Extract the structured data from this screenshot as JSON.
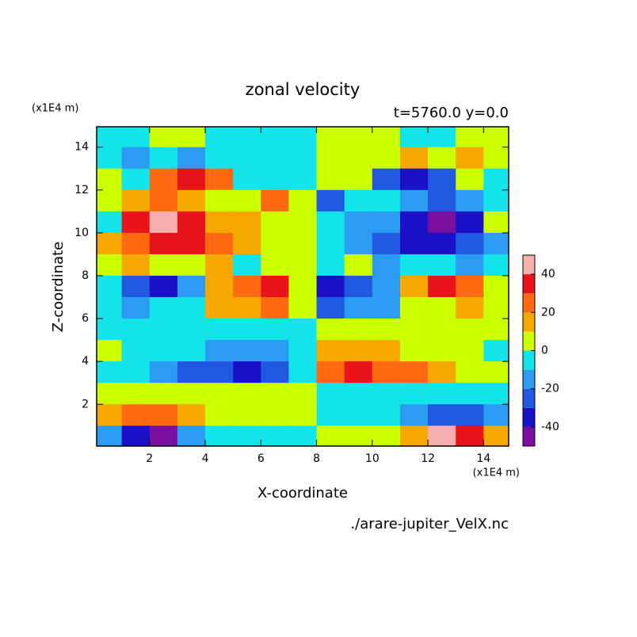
{
  "chart_data": {
    "type": "contour",
    "title": "zonal velocity",
    "subtitle": "t=5760.0 y=0.0",
    "x_label": "X-coordinate",
    "y_label": "Z-coordinate",
    "x_unit": "(x1E4 m)",
    "y_unit": "(x1E4 m)",
    "source": "./arare-jupiter_VelX.nc",
    "xlim": [
      0.1,
      14.9
    ],
    "ylim": [
      0.05,
      14.95
    ],
    "xticks": [
      2,
      4,
      6,
      8,
      10,
      12,
      14
    ],
    "yticks": [
      2,
      4,
      6,
      8,
      10,
      12,
      14
    ],
    "x": [
      0.5,
      1.5,
      2.5,
      3.5,
      4.5,
      5.5,
      6.5,
      7.5,
      8.5,
      9.5,
      10.5,
      11.5,
      12.5,
      13.5,
      14.5
    ],
    "z": [
      14.5,
      13.5,
      12.5,
      11.5,
      10.5,
      9.5,
      8.5,
      7.5,
      6.5,
      5.5,
      4.5,
      3.5,
      2.5,
      1.5,
      0.5
    ],
    "values": [
      [
        -5,
        -5,
        2,
        2,
        -5,
        -5,
        -5,
        -5,
        5,
        5,
        5,
        -2,
        -2,
        5,
        5
      ],
      [
        -5,
        -15,
        -5,
        -15,
        -5,
        -5,
        -5,
        -5,
        5,
        5,
        5,
        15,
        5,
        15,
        5
      ],
      [
        5,
        -5,
        25,
        35,
        25,
        -5,
        -5,
        -5,
        5,
        5,
        -25,
        -35,
        -25,
        5,
        -5
      ],
      [
        5,
        15,
        25,
        15,
        5,
        5,
        25,
        5,
        -25,
        -5,
        -5,
        -15,
        -25,
        -15,
        -5
      ],
      [
        -5,
        35,
        45,
        35,
        15,
        15,
        5,
        5,
        -5,
        -15,
        -15,
        -35,
        -45,
        -35,
        5
      ],
      [
        15,
        25,
        35,
        35,
        25,
        15,
        5,
        5,
        -5,
        -15,
        -25,
        -35,
        -35,
        -25,
        -15
      ],
      [
        5,
        15,
        5,
        5,
        15,
        -5,
        5,
        5,
        -5,
        5,
        -15,
        -5,
        -5,
        -15,
        -5
      ],
      [
        -5,
        -25,
        -35,
        -15,
        15,
        25,
        35,
        5,
        -35,
        -25,
        -15,
        15,
        35,
        25,
        5
      ],
      [
        -5,
        -15,
        -5,
        -5,
        15,
        15,
        25,
        5,
        -25,
        -15,
        -15,
        5,
        5,
        15,
        5
      ],
      [
        -5,
        -5,
        -5,
        -5,
        -5,
        -5,
        -5,
        -5,
        5,
        5,
        5,
        5,
        5,
        5,
        5
      ],
      [
        5,
        -5,
        -5,
        -5,
        -15,
        -15,
        -15,
        -5,
        15,
        15,
        15,
        5,
        5,
        5,
        -5
      ],
      [
        -5,
        -5,
        -15,
        -25,
        -25,
        -35,
        -25,
        -5,
        25,
        35,
        25,
        25,
        15,
        5,
        5
      ],
      [
        5,
        5,
        5,
        5,
        5,
        5,
        5,
        5,
        -5,
        -5,
        -5,
        -5,
        -5,
        -5,
        -5
      ],
      [
        15,
        25,
        25,
        15,
        5,
        5,
        5,
        5,
        -5,
        -5,
        -5,
        -15,
        -25,
        -25,
        -15
      ],
      [
        -15,
        -35,
        -45,
        -15,
        -5,
        -5,
        -5,
        -5,
        5,
        5,
        5,
        15,
        45,
        35,
        15
      ]
    ],
    "levels": [
      -50,
      -40,
      -30,
      -20,
      -10,
      0,
      10,
      20,
      30,
      40,
      50
    ],
    "colors": [
      "#7a0fa0",
      "#1a10c8",
      "#2058e0",
      "#2c9cf2",
      "#12e4ea",
      "#ccff00",
      "#f5a800",
      "#ff6a12",
      "#e8141a",
      "#f6aeae"
    ],
    "colorbar_ticks": [
      -40,
      -20,
      0,
      20,
      40
    ]
  }
}
